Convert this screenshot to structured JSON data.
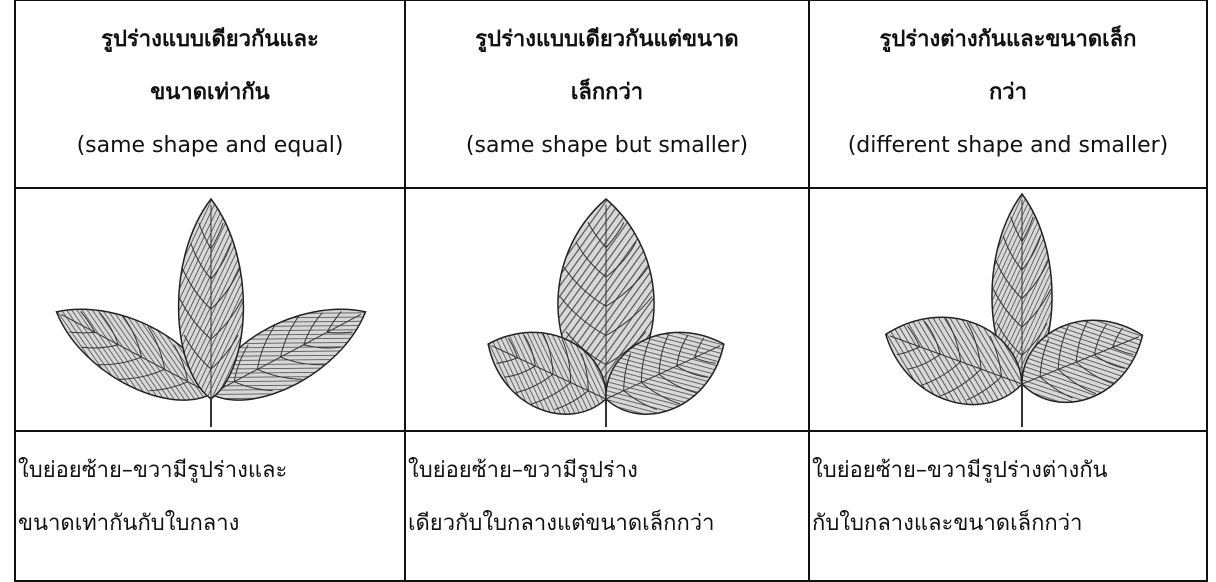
{
  "columns": [
    {
      "title_lines": [
        "รูปร่างแบบเดียวกันและ",
        "ขนาดเท่ากัน"
      ],
      "subtitle": "(same shape and equal)",
      "description_lines": [
        "ใบย่อยซ้าย–ขวามีรูปร่างและ",
        "ขนาดเท่ากันกับใบกลาง"
      ]
    },
    {
      "title_lines": [
        "รูปร่างแบบเดียวกันแต่ขนาด",
        "เล็กกว่า"
      ],
      "subtitle": "(same shape but smaller)",
      "description_lines": [
        "ใบย่อยซ้าย–ขวามีรูปร่าง",
        "เดียวกับใบกลางแต่ขนาดเล็กกว่า"
      ]
    },
    {
      "title_lines": [
        "รูปร่างต่างกันและขนาดเล็ก",
        "กว่า"
      ],
      "subtitle": "(different shape and smaller)",
      "description_lines": [
        "ใบย่อยซ้าย–ขวามีรูปร่างต่างกัน",
        "กับใบกลางและขนาดเล็กกว่า"
      ]
    }
  ]
}
